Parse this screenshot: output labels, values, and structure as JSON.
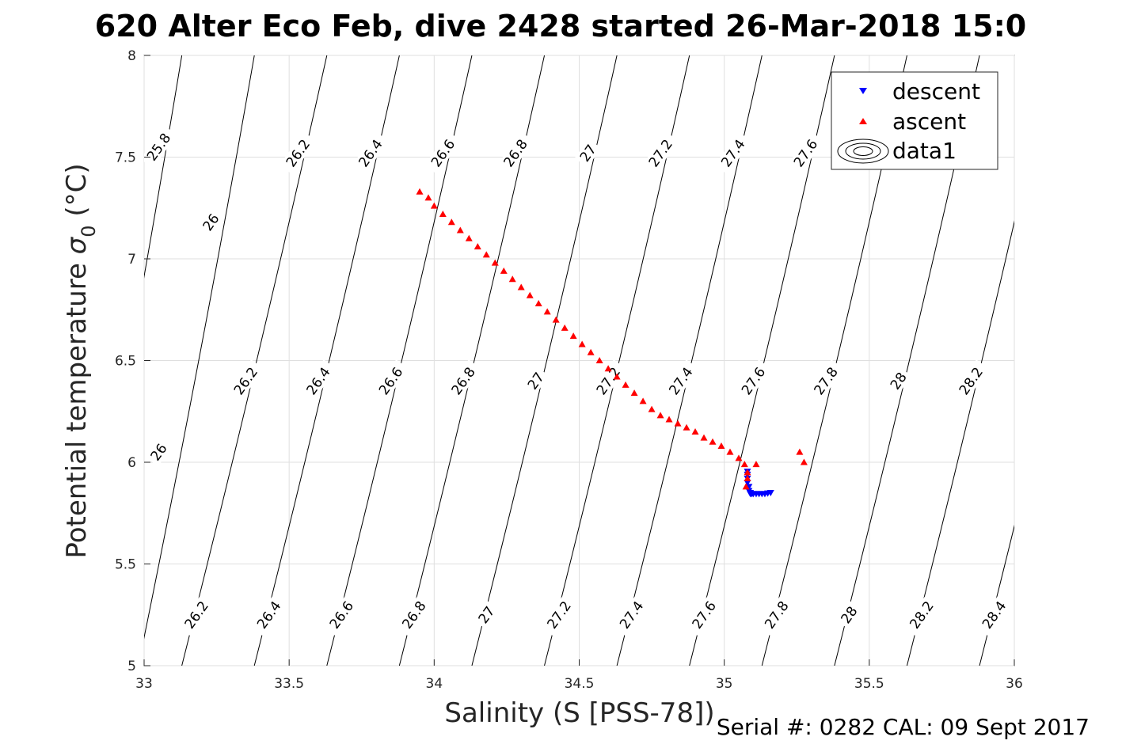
{
  "chart_data": {
    "type": "scatter",
    "title": "620 Alter Eco Feb, dive 2428 started 26-Mar-2018 15:0",
    "xlabel": "Salinity (S [PSS-78])",
    "ylabel_main": "Potential temperature ",
    "ylabel_symbol": "σ",
    "ylabel_sub": "0",
    "ylabel_unit": " (°C)",
    "xlim": [
      33,
      36
    ],
    "ylim": [
      5,
      8
    ],
    "x_ticks": [
      33,
      33.5,
      34,
      34.5,
      35,
      35.5,
      36
    ],
    "x_tick_labels": [
      "33",
      "33.5",
      "34",
      "34.5",
      "35",
      "35.5",
      "36"
    ],
    "y_ticks": [
      5,
      5.5,
      6,
      6.5,
      7,
      7.5,
      8
    ],
    "y_tick_labels": [
      "5",
      "5.5",
      "6",
      "6.5",
      "7",
      "7.5",
      "8"
    ],
    "grid": true,
    "legend_position": "top-right",
    "legend": [
      "descent",
      "ascent",
      "data1"
    ],
    "footer": "Serial #: 0282  CAL: 09 Sept 2017",
    "series": [
      {
        "name": "descent",
        "marker": "triangle-down",
        "color": "#0000ff",
        "x": [
          35.08,
          35.08,
          35.08,
          35.08,
          35.085,
          35.085,
          35.09,
          35.09,
          35.095,
          35.1,
          35.11,
          35.12,
          35.13,
          35.14,
          35.15,
          35.16
        ],
        "y": [
          5.955,
          5.94,
          5.92,
          5.9,
          5.88,
          5.86,
          5.85,
          5.845,
          5.845,
          5.845,
          5.845,
          5.845,
          5.845,
          5.845,
          5.848,
          5.85
        ]
      },
      {
        "name": "ascent",
        "marker": "triangle-up",
        "color": "#ff0000",
        "x": [
          33.95,
          33.98,
          34.0,
          34.03,
          34.06,
          34.09,
          34.12,
          34.15,
          34.18,
          34.21,
          34.24,
          34.27,
          34.3,
          34.33,
          34.36,
          34.39,
          34.42,
          34.45,
          34.48,
          34.51,
          34.54,
          34.57,
          34.6,
          34.63,
          34.66,
          34.69,
          34.72,
          34.75,
          34.78,
          34.81,
          34.84,
          34.87,
          34.9,
          34.93,
          34.96,
          34.99,
          35.02,
          35.05,
          35.07,
          35.08,
          35.08,
          35.075,
          35.11,
          35.26,
          35.275
        ],
        "y": [
          7.33,
          7.3,
          7.26,
          7.22,
          7.18,
          7.14,
          7.1,
          7.06,
          7.02,
          6.98,
          6.94,
          6.9,
          6.86,
          6.82,
          6.78,
          6.74,
          6.7,
          6.66,
          6.62,
          6.58,
          6.54,
          6.5,
          6.46,
          6.42,
          6.38,
          6.34,
          6.3,
          6.26,
          6.23,
          6.21,
          6.19,
          6.17,
          6.15,
          6.12,
          6.1,
          6.08,
          6.05,
          6.02,
          5.99,
          5.95,
          5.92,
          5.88,
          5.99,
          6.05,
          6.0
        ]
      }
    ],
    "density_contours": {
      "name": "data1",
      "levels": [
        "25.8",
        "26",
        "26.2",
        "26.4",
        "26.6",
        "26.8",
        "27",
        "27.2",
        "27.4",
        "27.6",
        "27.8",
        "28",
        "28.2",
        "28.4"
      ],
      "lines": [
        {
          "label": "25.8",
          "bottom": [
            32.75,
            5.0
          ],
          "top": [
            33.13,
            8.0
          ]
        },
        {
          "label": "26",
          "bottom": [
            32.98,
            5.0
          ],
          "top": [
            33.38,
            8.0
          ]
        },
        {
          "label": "26.2",
          "bottom": [
            33.13,
            5.0
          ],
          "top": [
            33.63,
            8.0
          ]
        },
        {
          "label": "26.4",
          "bottom": [
            33.38,
            5.0
          ],
          "top": [
            33.88,
            8.0
          ]
        },
        {
          "label": "26.6",
          "bottom": [
            33.63,
            5.0
          ],
          "top": [
            34.13,
            8.0
          ]
        },
        {
          "label": "26.8",
          "bottom": [
            33.88,
            5.0
          ],
          "top": [
            34.38,
            8.0
          ]
        },
        {
          "label": "27",
          "bottom": [
            34.13,
            5.0
          ],
          "top": [
            34.63,
            8.0
          ]
        },
        {
          "label": "27.2",
          "bottom": [
            34.38,
            5.0
          ],
          "top": [
            34.88,
            8.0
          ]
        },
        {
          "label": "27.4",
          "bottom": [
            34.63,
            5.0
          ],
          "top": [
            35.13,
            8.0
          ]
        },
        {
          "label": "27.6",
          "bottom": [
            34.88,
            5.0
          ],
          "top": [
            35.38,
            8.0
          ]
        },
        {
          "label": "27.8",
          "bottom": [
            35.13,
            5.0
          ],
          "top": [
            35.63,
            8.0
          ]
        },
        {
          "label": "28",
          "bottom": [
            35.38,
            5.0
          ],
          "top": [
            35.88,
            8.0
          ]
        },
        {
          "label": "28.2",
          "bottom": [
            35.63,
            5.0
          ],
          "top": [
            36.13,
            8.0
          ]
        },
        {
          "label": "28.4",
          "bottom": [
            35.88,
            5.0
          ],
          "top": [
            36.38,
            8.0
          ]
        }
      ],
      "labels": [
        {
          "text": "25.8",
          "x": 33.05,
          "y": 7.55
        },
        {
          "text": "26",
          "x": 33.23,
          "y": 7.18
        },
        {
          "text": "26.2",
          "x": 33.53,
          "y": 7.52
        },
        {
          "text": "26.4",
          "x": 33.78,
          "y": 7.52
        },
        {
          "text": "26.6",
          "x": 34.03,
          "y": 7.52
        },
        {
          "text": "26.8",
          "x": 34.28,
          "y": 7.52
        },
        {
          "text": "27",
          "x": 34.53,
          "y": 7.52
        },
        {
          "text": "27.2",
          "x": 34.78,
          "y": 7.52
        },
        {
          "text": "27.4",
          "x": 35.03,
          "y": 7.52
        },
        {
          "text": "27.6",
          "x": 35.28,
          "y": 7.52
        },
        {
          "text": "26",
          "x": 33.05,
          "y": 6.05
        },
        {
          "text": "26.2",
          "x": 33.35,
          "y": 6.4
        },
        {
          "text": "26.4",
          "x": 33.6,
          "y": 6.4
        },
        {
          "text": "26.6",
          "x": 33.85,
          "y": 6.4
        },
        {
          "text": "26.8",
          "x": 34.1,
          "y": 6.4
        },
        {
          "text": "27",
          "x": 34.35,
          "y": 6.4
        },
        {
          "text": "27.2",
          "x": 34.6,
          "y": 6.4
        },
        {
          "text": "27.4",
          "x": 34.85,
          "y": 6.4
        },
        {
          "text": "27.6",
          "x": 35.1,
          "y": 6.4
        },
        {
          "text": "27.8",
          "x": 35.35,
          "y": 6.4
        },
        {
          "text": "28",
          "x": 35.6,
          "y": 6.4
        },
        {
          "text": "28.2",
          "x": 35.85,
          "y": 6.4
        },
        {
          "text": "26.2",
          "x": 33.18,
          "y": 5.25
        },
        {
          "text": "26.4",
          "x": 33.43,
          "y": 5.25
        },
        {
          "text": "26.6",
          "x": 33.68,
          "y": 5.25
        },
        {
          "text": "26.8",
          "x": 33.93,
          "y": 5.25
        },
        {
          "text": "27",
          "x": 34.18,
          "y": 5.25
        },
        {
          "text": "27.2",
          "x": 34.43,
          "y": 5.25
        },
        {
          "text": "27.4",
          "x": 34.68,
          "y": 5.25
        },
        {
          "text": "27.6",
          "x": 34.93,
          "y": 5.25
        },
        {
          "text": "27.8",
          "x": 35.18,
          "y": 5.25
        },
        {
          "text": "28",
          "x": 35.43,
          "y": 5.25
        },
        {
          "text": "28.2",
          "x": 35.68,
          "y": 5.25
        },
        {
          "text": "28.4",
          "x": 35.93,
          "y": 5.25
        }
      ]
    }
  }
}
